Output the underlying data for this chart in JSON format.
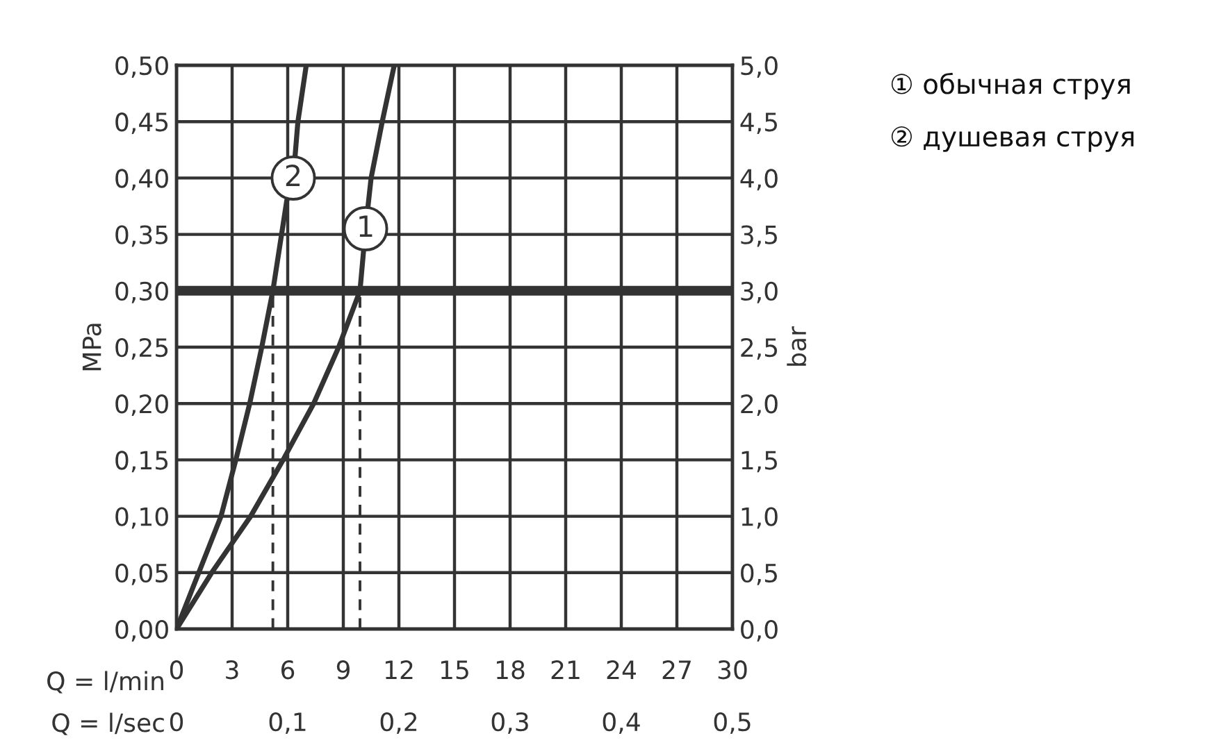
{
  "chart_data": {
    "type": "line",
    "ylabel": "MPa",
    "y2label": "bar",
    "xlabel": "Q = l/min",
    "x2label": "Q = l/sec",
    "series": [
      {
        "x": [
          0,
          1.9,
          4.0,
          5.75,
          7.4,
          8.75,
          9.9,
          10.2,
          10.5,
          11.1,
          11.75
        ],
        "values": [
          0,
          0.05,
          0.1,
          0.15,
          0.2,
          0.25,
          0.3,
          0.355,
          0.4,
          0.45,
          0.5
        ],
        "color": "#333333"
      },
      {
        "x": [
          0,
          2.4,
          3.2,
          3.95,
          4.6,
          5.2,
          5.95,
          6.3,
          6.55,
          7.0
        ],
        "values": [
          0,
          0.1,
          0.15,
          0.2,
          0.25,
          0.3,
          0.38,
          0.4,
          0.45,
          0.5
        ],
        "color": "#333333"
      }
    ],
    "xlim": [
      0,
      30
    ],
    "xticks": [
      0,
      3,
      6,
      9,
      12,
      15,
      18,
      21,
      24,
      27,
      30
    ],
    "x2lim": [
      0,
      0.5
    ],
    "x2ticks": [
      0,
      {
        "value": 0.1,
        "label": "0,1"
      },
      {
        "value": 0.2,
        "label": "0,2"
      },
      {
        "value": 0.3,
        "label": "0,3"
      },
      {
        "value": 0.4,
        "label": "0,4"
      },
      {
        "value": 0.5,
        "label": "0,5"
      }
    ],
    "ylim": [
      0,
      0.5
    ],
    "yticks": [
      {
        "value": 0,
        "label": "0,00"
      },
      {
        "value": 0.05,
        "label": "0,05"
      },
      {
        "value": 0.1,
        "label": "0,10"
      },
      {
        "value": 0.15,
        "label": "0,15"
      },
      {
        "value": 0.2,
        "label": "0,20"
      },
      {
        "value": 0.25,
        "label": "0,25"
      },
      {
        "value": 0.3,
        "label": "0,30"
      },
      {
        "value": 0.35,
        "label": "0,35"
      },
      {
        "value": 0.4,
        "label": "0,40"
      },
      {
        "value": 0.45,
        "label": "0,45"
      },
      {
        "value": 0.5,
        "label": "0,50"
      }
    ],
    "y2lim": [
      0,
      5
    ],
    "y2ticks": [
      {
        "value": 0,
        "label": "0,0"
      },
      {
        "value": 0.5,
        "label": "0,5"
      },
      {
        "value": 1,
        "label": "1,0"
      },
      {
        "value": 1.5,
        "label": "1,5"
      },
      {
        "value": 2,
        "label": "2,0"
      },
      {
        "value": 2.5,
        "label": "2,5"
      },
      {
        "value": 3,
        "label": "3,0"
      },
      {
        "value": 3.5,
        "label": "3,5"
      },
      {
        "value": 4,
        "label": "4,0"
      },
      {
        "value": 4.5,
        "label": "4,5"
      },
      {
        "value": 5,
        "label": "5,0"
      }
    ],
    "ref_lines": [
      {
        "axis": "y",
        "value": 0.3,
        "color": "#333333",
        "line_style": "solid"
      },
      {
        "axis": "x",
        "value": 5.2,
        "color": "#333333",
        "line_style": "dashed"
      },
      {
        "axis": "x",
        "value": 9.9,
        "color": "#333333",
        "line_style": "dashed"
      }
    ],
    "annotations": [
      {
        "text": "1",
        "x": 10.2,
        "y": 0.355
      },
      {
        "text": "2",
        "x": 6.3,
        "y": 0.4
      },
      "① обычная струя",
      "② душевая струя"
    ],
    "grid": true,
    "marker": "none",
    "line_style": "solid"
  }
}
